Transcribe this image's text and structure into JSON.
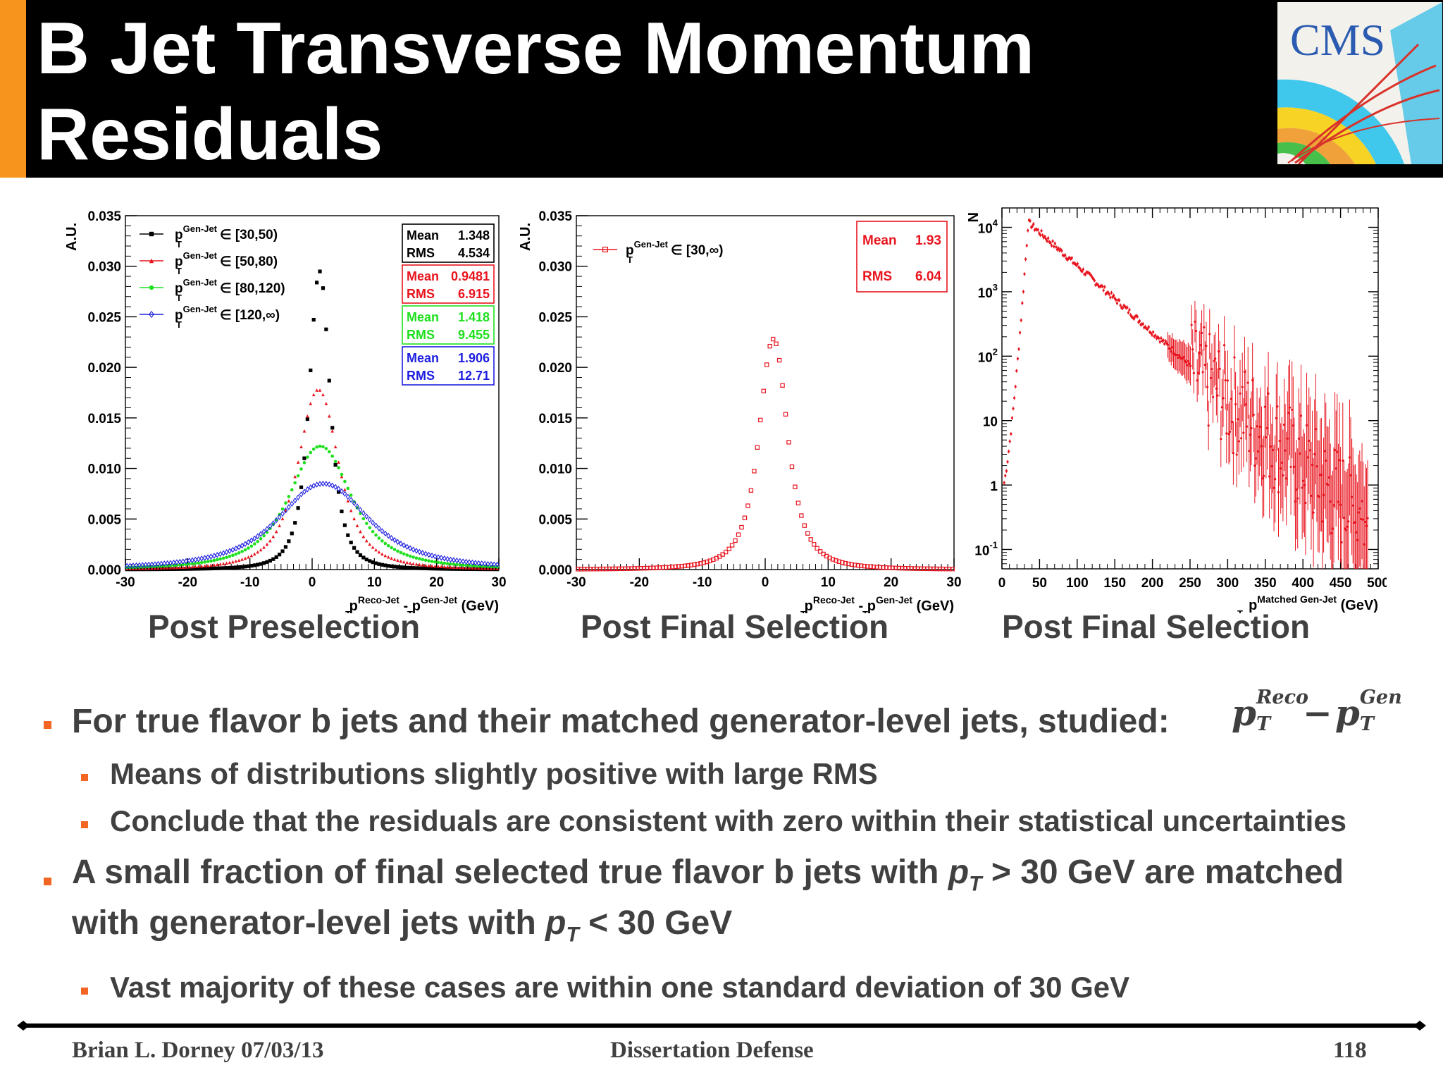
{
  "slide": {
    "title": "B Jet Transverse Momentum Residuals",
    "logo_text": "CMS",
    "colors": {
      "accent": "#f7941d",
      "bullet": "#f26522",
      "text": "#404040"
    }
  },
  "captions": [
    "Post Preselection",
    "Post Final Selection",
    "Post Final Selection"
  ],
  "chart_data": [
    {
      "type": "line",
      "ylabel": "A.U.",
      "xlabel_parts": {
        "main": "p",
        "sub1": "T",
        "sup1": "Reco-Jet",
        "sep": " - p",
        "sub2": "T",
        "sup2": "Gen-Jet",
        "unit": " (GeV)"
      },
      "xlim": [
        -30,
        30
      ],
      "ylim": [
        0,
        0.035
      ],
      "xticks": [
        "-30",
        "-20",
        "-10",
        "0",
        "10",
        "20",
        "30"
      ],
      "yticks": [
        "0.000",
        "0.005",
        "0.010",
        "0.015",
        "0.020",
        "0.025",
        "0.030",
        "0.035"
      ],
      "legend": [
        {
          "name": "p",
          "sub": "T",
          "sup": "Gen-Jet",
          "range": "∈ [30,50)",
          "color": "#000000",
          "marker": "square"
        },
        {
          "name": "p",
          "sub": "T",
          "sup": "Gen-Jet",
          "range": "∈ [50,80)",
          "color": "#e8141e",
          "marker": "triangle"
        },
        {
          "name": "p",
          "sub": "T",
          "sup": "Gen-Jet",
          "range": "∈ [80,120)",
          "color": "#1ee01e",
          "marker": "star"
        },
        {
          "name": "p",
          "sub": "T",
          "sup": "Gen-Jet",
          "range": "∈ [120,∞)",
          "color": "#1e1ee0",
          "marker": "diamond"
        }
      ],
      "stats": [
        {
          "mean_label": "Mean",
          "mean": "1.348",
          "rms_label": "RMS",
          "rms": "4.534",
          "color": "#000000"
        },
        {
          "mean_label": "Mean",
          "mean": "0.9481",
          "rms_label": "RMS",
          "rms": "6.915",
          "color": "#e8141e"
        },
        {
          "mean_label": "Mean",
          "mean": "1.418",
          "rms_label": "RMS",
          "rms": "9.455",
          "color": "#1ee01e"
        },
        {
          "mean_label": "Mean",
          "mean": "1.906",
          "rms_label": "RMS",
          "rms": "12.71",
          "color": "#1e1ee0"
        }
      ],
      "series": [
        {
          "name": "[30,50)",
          "peak": 0.0295,
          "center": 1.2,
          "width": 2.4,
          "tail": 0.6
        },
        {
          "name": "[50,80)",
          "peak": 0.0178,
          "center": 1.0,
          "width": 4.6,
          "tail": 0.5
        },
        {
          "name": "[80,120)",
          "peak": 0.0122,
          "center": 1.3,
          "width": 7.0,
          "tail": 0.45
        },
        {
          "name": "[120,∞)",
          "peak": 0.0085,
          "center": 1.8,
          "width": 10.0,
          "tail": 0.4
        }
      ]
    },
    {
      "type": "line",
      "ylabel": "A.U.",
      "xlabel_parts": {
        "main": "p",
        "sub1": "T",
        "sup1": "Reco-Jet",
        "sep": " - p",
        "sub2": "T",
        "sup2": "Gen-Jet",
        "unit": " (GeV)"
      },
      "xlim": [
        -30,
        30
      ],
      "ylim": [
        0,
        0.035
      ],
      "xticks": [
        "-30",
        "-20",
        "-10",
        "0",
        "10",
        "20",
        "30"
      ],
      "yticks": [
        "0.000",
        "0.005",
        "0.010",
        "0.015",
        "0.020",
        "0.025",
        "0.030",
        "0.035"
      ],
      "legend": [
        {
          "name": "p",
          "sub": "T",
          "sup": "Gen-Jet",
          "range": "∈ [30,∞)",
          "color": "#e8141e",
          "marker": "open-square"
        }
      ],
      "stats": [
        {
          "mean_label": "Mean",
          "mean": "1.93",
          "rms_label": "RMS",
          "rms": "6.04",
          "color": "#e8141e"
        }
      ],
      "series": [
        {
          "name": "[30,∞)",
          "peak": 0.0228,
          "center": 1.3,
          "width": 3.2,
          "tail": 0.5
        }
      ]
    },
    {
      "type": "scatter",
      "ylabel": "N",
      "yscale": "log",
      "xlabel_parts": {
        "main": "p",
        "sub1": "T",
        "sup1": "Matched Gen-Jet",
        "unit": " (GeV)"
      },
      "xlim": [
        0,
        500
      ],
      "ylim": [
        0.05,
        20000
      ],
      "xticks": [
        "0",
        "50",
        "100",
        "150",
        "200",
        "250",
        "300",
        "350",
        "400",
        "450",
        "500"
      ],
      "yticks": [
        {
          "base": "10",
          "exp": "4",
          "value": 10000
        },
        {
          "base": "10",
          "exp": "3",
          "value": 1000
        },
        {
          "base": "10",
          "exp": "2",
          "value": 100
        },
        {
          "base": "10",
          "exp": "",
          "value": 10
        },
        {
          "base": "1",
          "exp": "",
          "value": 1
        },
        {
          "base": "10",
          "exp": "-1",
          "value": 0.1
        }
      ],
      "series": [
        {
          "name": "matched gen-jet pT",
          "peak_x": 35,
          "peak_y": 12000,
          "color": "#e8141e"
        }
      ]
    }
  ],
  "bullets": {
    "b1": {
      "text": "For true flavor b jets and their matched generator-level jets, studied:"
    },
    "formula": {
      "p": "p",
      "sub": "T",
      "sup1": "Reco",
      "minus": "−",
      "sup2": "Gen"
    },
    "b1_sub1": "Means of distributions slightly positive with large RMS",
    "b1_sub2": "Conclude that the residuals are consistent with zero within their statistical uncertainties",
    "b2": {
      "line1_a": "A small fraction of final selected true flavor b jets with ",
      "p": "p",
      "sub": "T",
      "line1_b": " > 30 GeV are matched",
      "line2_a": "with generator-level jets with ",
      "line2_b": " < 30 GeV"
    },
    "b2_sub1": "Vast majority of these cases are within one standard deviation of 30 GeV"
  },
  "footer": {
    "left": "Brian L. Dorney 07/03/13",
    "center": "Dissertation Defense",
    "right": "118"
  }
}
